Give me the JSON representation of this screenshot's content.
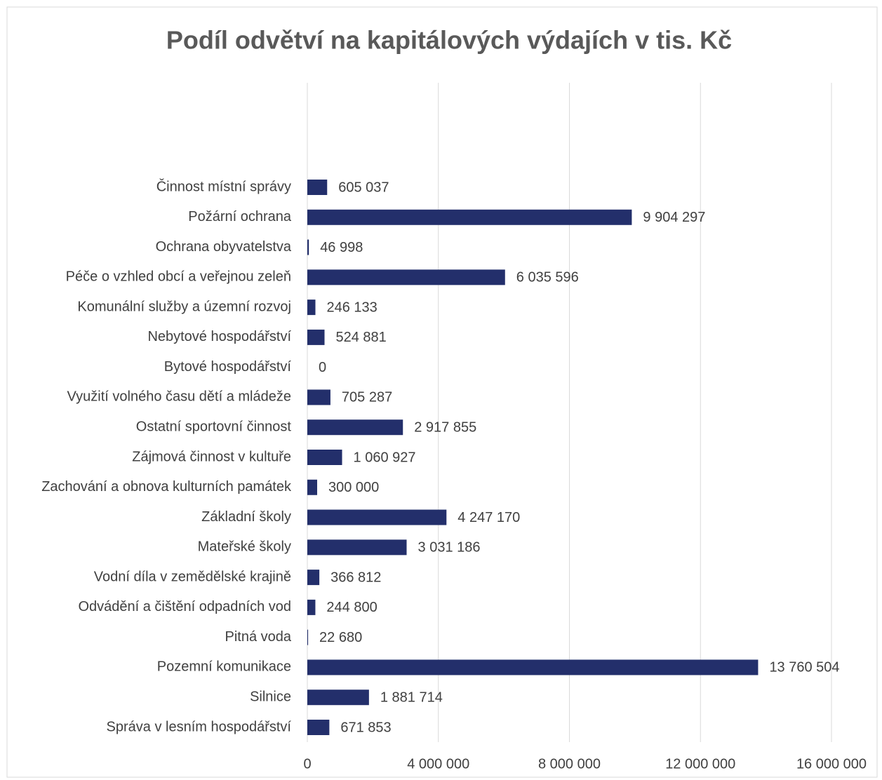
{
  "chart_data": {
    "type": "bar",
    "orientation": "horizontal",
    "title": "Podíl odvětví na kapitálových výdajích v tis. Kč",
    "categories": [
      "Činnost místní správy",
      "Požární ochrana",
      "Ochrana obyvatelstva",
      "Péče o vzhled obcí a veřejnou zeleň",
      "Komunální služby a územní rozvoj",
      "Nebytové hospodářství",
      "Bytové hospodářství",
      "Využití volného času dětí a mládeže",
      "Ostatní sportovní činnost",
      "Zájmová činnost v kultuře",
      "Zachování a obnova kulturních památek",
      "Základní školy",
      "Mateřské školy",
      "Vodní díla v zemědělské krajině",
      "Odvádění a čištění odpadních vod",
      "Pitná voda",
      "Pozemní komunikace",
      "Silnice",
      "Správa v lesním hospodářství"
    ],
    "values": [
      605037,
      9904297,
      46998,
      6035596,
      246133,
      524881,
      0,
      705287,
      2917855,
      1060927,
      300000,
      4247170,
      3031186,
      366812,
      244800,
      22680,
      13760504,
      1881714,
      671853
    ],
    "value_labels": [
      "605 037",
      "9 904 297",
      "46 998",
      "6 035 596",
      "246 133",
      "524 881",
      "0",
      "705 287",
      "2 917 855",
      "1 060 927",
      "300 000",
      "4 247 170",
      "3 031 186",
      "366 812",
      "244 800",
      "22 680",
      "13 760 504",
      "1 881 714",
      "671 853"
    ],
    "color": "#232f6b",
    "xlim": [
      0,
      16000000
    ],
    "xticks": [
      0,
      {
        "value": 4000000,
        "label": "4 000 000"
      },
      {
        "value": 8000000,
        "label": "8 000 000"
      },
      {
        "value": 12000000,
        "label": "12 000 000"
      },
      {
        "value": 16000000,
        "label": "16 000 000"
      }
    ],
    "grid": true
  }
}
